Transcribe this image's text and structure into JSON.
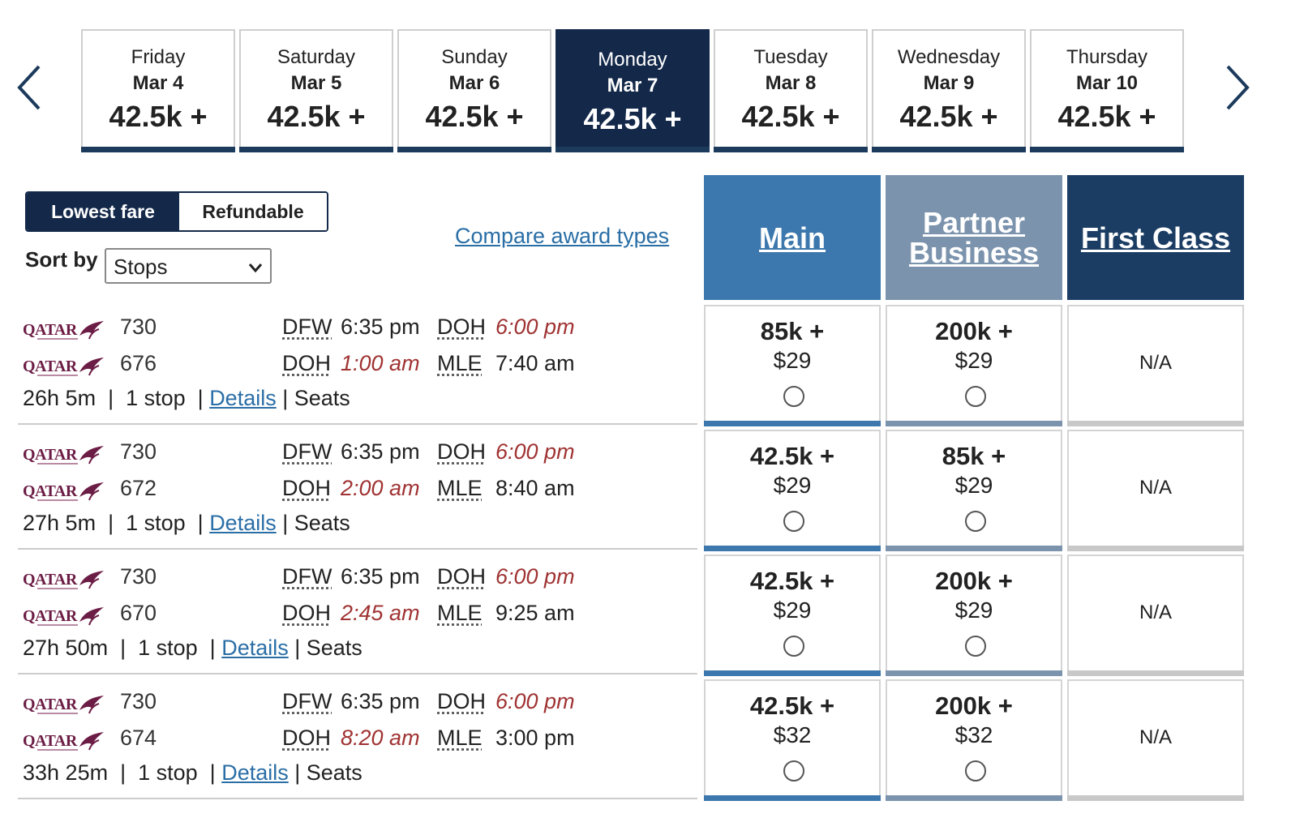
{
  "nav": {
    "prev_icon": "chevron-left-icon",
    "next_icon": "chevron-right-icon"
  },
  "dates": [
    {
      "day": "Friday",
      "date": "Mar 4",
      "price": "42.5k +",
      "selected": false
    },
    {
      "day": "Saturday",
      "date": "Mar 5",
      "price": "42.5k +",
      "selected": false
    },
    {
      "day": "Sunday",
      "date": "Mar 6",
      "price": "42.5k +",
      "selected": false
    },
    {
      "day": "Monday",
      "date": "Mar 7",
      "price": "42.5k +",
      "selected": true
    },
    {
      "day": "Tuesday",
      "date": "Mar 8",
      "price": "42.5k +",
      "selected": false
    },
    {
      "day": "Wednesday",
      "date": "Mar 9",
      "price": "42.5k +",
      "selected": false
    },
    {
      "day": "Thursday",
      "date": "Mar 10",
      "price": "42.5k +",
      "selected": false
    }
  ],
  "controls": {
    "lowest_fare": "Lowest fare",
    "refundable": "Refundable",
    "sort_label": "Sort by",
    "sort_value": "Stops",
    "compare_link": "Compare award types"
  },
  "fare_headers": [
    {
      "label": "Main",
      "color": "#3c78ad"
    },
    {
      "label": "Partner Business",
      "color": "#7b93ad"
    },
    {
      "label": "First Class",
      "color": "#1b3d63"
    }
  ],
  "colors": {
    "navy": "#14294a",
    "main_bar": "#3c78ad",
    "partner_bar": "#7b93ad",
    "na_bar": "#c8c8c8",
    "link": "#2a6ea6",
    "red_time": "#a03333"
  },
  "airline_logo_text": "QATAR",
  "flights": [
    {
      "segments": [
        {
          "flight": "730",
          "from": "DFW",
          "dep": "6:35 pm",
          "to": "DOH",
          "arr": "6:00 pm"
        },
        {
          "flight": "676",
          "from": "DOH",
          "dep": "1:00 am",
          "to": "MLE",
          "arr": "7:40 am"
        }
      ],
      "duration": "26h 5m",
      "stops": "1 stop",
      "details": "Details",
      "seats": "Seats",
      "fares": [
        {
          "points": "85k +",
          "tax": "$29"
        },
        {
          "points": "200k +",
          "tax": "$29"
        },
        {
          "na": "N/A"
        }
      ]
    },
    {
      "segments": [
        {
          "flight": "730",
          "from": "DFW",
          "dep": "6:35 pm",
          "to": "DOH",
          "arr": "6:00 pm"
        },
        {
          "flight": "672",
          "from": "DOH",
          "dep": "2:00 am",
          "to": "MLE",
          "arr": "8:40 am"
        }
      ],
      "duration": "27h 5m",
      "stops": "1 stop",
      "details": "Details",
      "seats": "Seats",
      "fares": [
        {
          "points": "42.5k +",
          "tax": "$29"
        },
        {
          "points": "85k +",
          "tax": "$29"
        },
        {
          "na": "N/A"
        }
      ]
    },
    {
      "segments": [
        {
          "flight": "730",
          "from": "DFW",
          "dep": "6:35 pm",
          "to": "DOH",
          "arr": "6:00 pm"
        },
        {
          "flight": "670",
          "from": "DOH",
          "dep": "2:45 am",
          "to": "MLE",
          "arr": "9:25 am"
        }
      ],
      "duration": "27h 50m",
      "stops": "1 stop",
      "details": "Details",
      "seats": "Seats",
      "fares": [
        {
          "points": "42.5k +",
          "tax": "$29"
        },
        {
          "points": "200k +",
          "tax": "$29"
        },
        {
          "na": "N/A"
        }
      ]
    },
    {
      "segments": [
        {
          "flight": "730",
          "from": "DFW",
          "dep": "6:35 pm",
          "to": "DOH",
          "arr": "6:00 pm"
        },
        {
          "flight": "674",
          "from": "DOH",
          "dep": "8:20 am",
          "to": "MLE",
          "arr": "3:00 pm"
        }
      ],
      "duration": "33h 25m",
      "stops": "1 stop",
      "details": "Details",
      "seats": "Seats",
      "fares": [
        {
          "points": "42.5k +",
          "tax": "$32"
        },
        {
          "points": "200k +",
          "tax": "$32"
        },
        {
          "na": "N/A"
        }
      ]
    }
  ]
}
